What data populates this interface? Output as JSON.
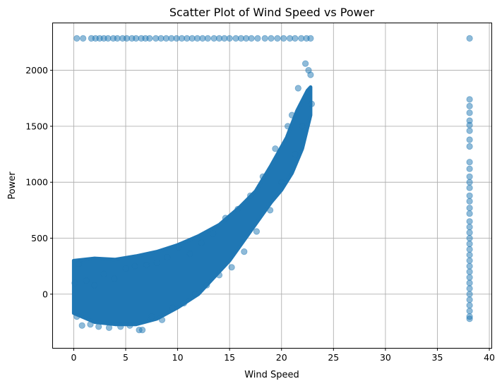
{
  "chart_data": {
    "type": "scatter",
    "title": "Scatter Plot of Wind Speed vs Power",
    "xlabel": "Wind Speed",
    "ylabel": "Power",
    "xlim": [
      -2,
      40.2
    ],
    "ylim": [
      -480,
      2420
    ],
    "xticks": [
      0,
      5,
      10,
      15,
      20,
      25,
      30,
      35,
      40
    ],
    "yticks": [
      0,
      500,
      1000,
      1500,
      2000
    ],
    "grid": true,
    "marker_color": "#1f77b4",
    "marker_alpha": 0.5,
    "series": [
      {
        "points": [
          [
            0.1,
            100
          ],
          [
            0.3,
            -200
          ],
          [
            0.5,
            270
          ],
          [
            0.8,
            -280
          ],
          [
            1.2,
            120
          ],
          [
            1.6,
            -270
          ],
          [
            2.0,
            80
          ],
          [
            2.4,
            -290
          ],
          [
            2.9,
            180
          ],
          [
            3.4,
            -300
          ],
          [
            3.9,
            140
          ],
          [
            4.5,
            -290
          ],
          [
            5.0,
            230
          ],
          [
            5.4,
            -280
          ],
          [
            5.9,
            250
          ],
          [
            6.3,
            -320
          ],
          [
            6.6,
            -320
          ],
          [
            7.0,
            260
          ],
          [
            7.5,
            -200
          ],
          [
            8.0,
            280
          ],
          [
            8.5,
            -230
          ],
          [
            9.0,
            330
          ],
          [
            9.5,
            -120
          ],
          [
            10.1,
            420
          ],
          [
            10.6,
            -80
          ],
          [
            11.2,
            360
          ],
          [
            11.7,
            0
          ],
          [
            12.3,
            460
          ],
          [
            12.8,
            80
          ],
          [
            13.4,
            540
          ],
          [
            14.0,
            170
          ],
          [
            14.6,
            680
          ],
          [
            15.2,
            240
          ],
          [
            15.8,
            760
          ],
          [
            16.4,
            380
          ],
          [
            17.0,
            880
          ],
          [
            17.6,
            560
          ],
          [
            18.2,
            1050
          ],
          [
            18.9,
            750
          ],
          [
            19.4,
            1300
          ],
          [
            20.0,
            1000
          ],
          [
            20.6,
            1500
          ],
          [
            21.0,
            1600
          ],
          [
            21.3,
            1250
          ],
          [
            21.6,
            1840
          ],
          [
            22.0,
            1500
          ],
          [
            22.3,
            2060
          ],
          [
            22.6,
            2000
          ],
          [
            22.8,
            1960
          ],
          [
            22.9,
            1700
          ],
          [
            0.3,
            2285
          ],
          [
            0.9,
            2285
          ],
          [
            1.7,
            2285
          ],
          [
            2.1,
            2285
          ],
          [
            2.5,
            2285
          ],
          [
            2.9,
            2285
          ],
          [
            3.3,
            2285
          ],
          [
            3.8,
            2285
          ],
          [
            4.2,
            2285
          ],
          [
            4.7,
            2285
          ],
          [
            5.1,
            2285
          ],
          [
            5.6,
            2285
          ],
          [
            6.0,
            2285
          ],
          [
            6.5,
            2285
          ],
          [
            6.9,
            2285
          ],
          [
            7.3,
            2285
          ],
          [
            7.9,
            2285
          ],
          [
            8.4,
            2285
          ],
          [
            8.9,
            2285
          ],
          [
            9.4,
            2285
          ],
          [
            9.9,
            2285
          ],
          [
            10.4,
            2285
          ],
          [
            10.9,
            2285
          ],
          [
            11.4,
            2285
          ],
          [
            11.9,
            2285
          ],
          [
            12.4,
            2285
          ],
          [
            12.9,
            2285
          ],
          [
            13.5,
            2285
          ],
          [
            14.0,
            2285
          ],
          [
            14.5,
            2285
          ],
          [
            15.0,
            2285
          ],
          [
            15.6,
            2285
          ],
          [
            16.1,
            2285
          ],
          [
            16.6,
            2285
          ],
          [
            17.1,
            2285
          ],
          [
            17.7,
            2285
          ],
          [
            18.4,
            2285
          ],
          [
            19.0,
            2285
          ],
          [
            19.6,
            2285
          ],
          [
            20.2,
            2285
          ],
          [
            20.8,
            2285
          ],
          [
            21.3,
            2285
          ],
          [
            21.9,
            2285
          ],
          [
            22.4,
            2285
          ],
          [
            22.8,
            2285
          ],
          [
            38.1,
            2285
          ],
          [
            38.1,
            1740
          ],
          [
            38.1,
            1680
          ],
          [
            38.1,
            1620
          ],
          [
            38.1,
            1550
          ],
          [
            38.1,
            1510
          ],
          [
            38.1,
            1460
          ],
          [
            38.1,
            1380
          ],
          [
            38.1,
            1320
          ],
          [
            38.1,
            1180
          ],
          [
            38.1,
            1120
          ],
          [
            38.1,
            1050
          ],
          [
            38.1,
            1000
          ],
          [
            38.1,
            950
          ],
          [
            38.1,
            880
          ],
          [
            38.1,
            830
          ],
          [
            38.1,
            770
          ],
          [
            38.1,
            720
          ],
          [
            38.1,
            650
          ],
          [
            38.1,
            600
          ],
          [
            38.1,
            550
          ],
          [
            38.1,
            500
          ],
          [
            38.1,
            450
          ],
          [
            38.1,
            400
          ],
          [
            38.1,
            350
          ],
          [
            38.1,
            300
          ],
          [
            38.1,
            250
          ],
          [
            38.1,
            200
          ],
          [
            38.1,
            150
          ],
          [
            38.1,
            100
          ],
          [
            38.1,
            50
          ],
          [
            38.1,
            0
          ],
          [
            38.1,
            -50
          ],
          [
            38.1,
            -100
          ],
          [
            38.1,
            -150
          ],
          [
            38.1,
            -200
          ],
          [
            38.1,
            -220
          ]
        ]
      }
    ]
  }
}
